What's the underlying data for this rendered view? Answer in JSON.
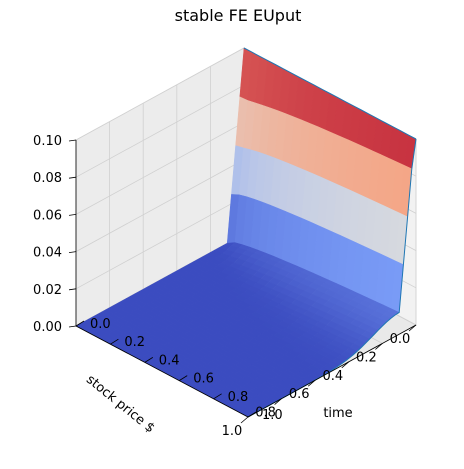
{
  "chart_data": {
    "type": "surface",
    "title": "stable FE EUput",
    "xlabel": "stock price $",
    "ylabel": "time",
    "zlabel": "",
    "x_ticks": [
      "0.0",
      "0.2",
      "0.4",
      "0.6",
      "0.8",
      "1.0"
    ],
    "y_ticks": [
      "0.0",
      "0.2",
      "0.4",
      "0.6",
      "0.8",
      "1.0"
    ],
    "z_ticks": [
      "0.00",
      "0.02",
      "0.04",
      "0.06",
      "0.08",
      "0.10"
    ],
    "xlim": [
      0,
      1
    ],
    "ylim": [
      0,
      1
    ],
    "zlim": [
      0,
      0.1
    ],
    "strike": 0.1,
    "surface_max": 0.1,
    "colormap": "coolwarm",
    "colors": {
      "low": "#3b4cc0",
      "mid": "#dddddd",
      "high": "#b40426",
      "edge": "#1f77b4"
    },
    "grid": true
  }
}
